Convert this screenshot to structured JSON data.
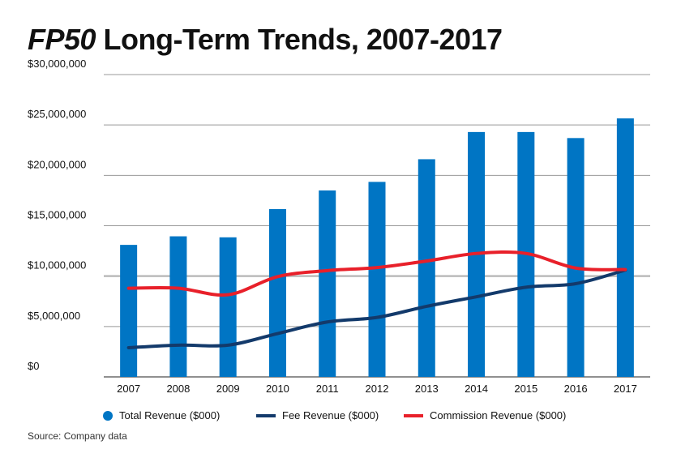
{
  "title": {
    "italic": "FP50",
    "rest": " Long-Term Trends, 2007-2017"
  },
  "chart_data": {
    "type": "bar",
    "title": "FP50 Long-Term Trends, 2007-2017",
    "categories": [
      "2007",
      "2008",
      "2009",
      "2010",
      "2011",
      "2012",
      "2013",
      "2014",
      "2015",
      "2016",
      "2017"
    ],
    "ylim": [
      0,
      30000000
    ],
    "yticks": [
      0,
      5000000,
      10000000,
      15000000,
      20000000,
      25000000,
      30000000
    ],
    "ytick_labels": [
      "$0",
      "$5,000,000",
      "$10,000,000",
      "$15,000,000",
      "$20,000,000",
      "$25,000,000",
      "$30,000,000"
    ],
    "series": [
      {
        "name": "Total Revenue ($000)",
        "kind": "bar",
        "color": "#0075c4",
        "values": [
          13100000,
          13950000,
          13850000,
          16650000,
          18500000,
          19350000,
          21600000,
          24300000,
          24300000,
          23700000,
          25650000
        ]
      },
      {
        "name": "Fee Revenue ($000)",
        "kind": "line",
        "color": "#133a6b",
        "values": [
          2900000,
          3150000,
          3150000,
          4300000,
          5450000,
          5900000,
          7000000,
          7950000,
          8900000,
          9250000,
          10600000
        ]
      },
      {
        "name": "Commission Revenue ($000)",
        "kind": "line",
        "color": "#e8202a",
        "values": [
          8800000,
          8800000,
          8150000,
          9950000,
          10550000,
          10850000,
          11500000,
          12250000,
          12250000,
          10800000,
          10650000
        ]
      }
    ]
  },
  "legend": {
    "total": "Total Revenue ($000)",
    "fee": "Fee Revenue ($000)",
    "commission": "Commission Revenue ($000)"
  },
  "source": "Source: Company data",
  "colors": {
    "bar": "#0075c4",
    "fee": "#133a6b",
    "commission": "#e8202a",
    "grid": "#999999",
    "highlight_grid": "#bbbbbb"
  }
}
